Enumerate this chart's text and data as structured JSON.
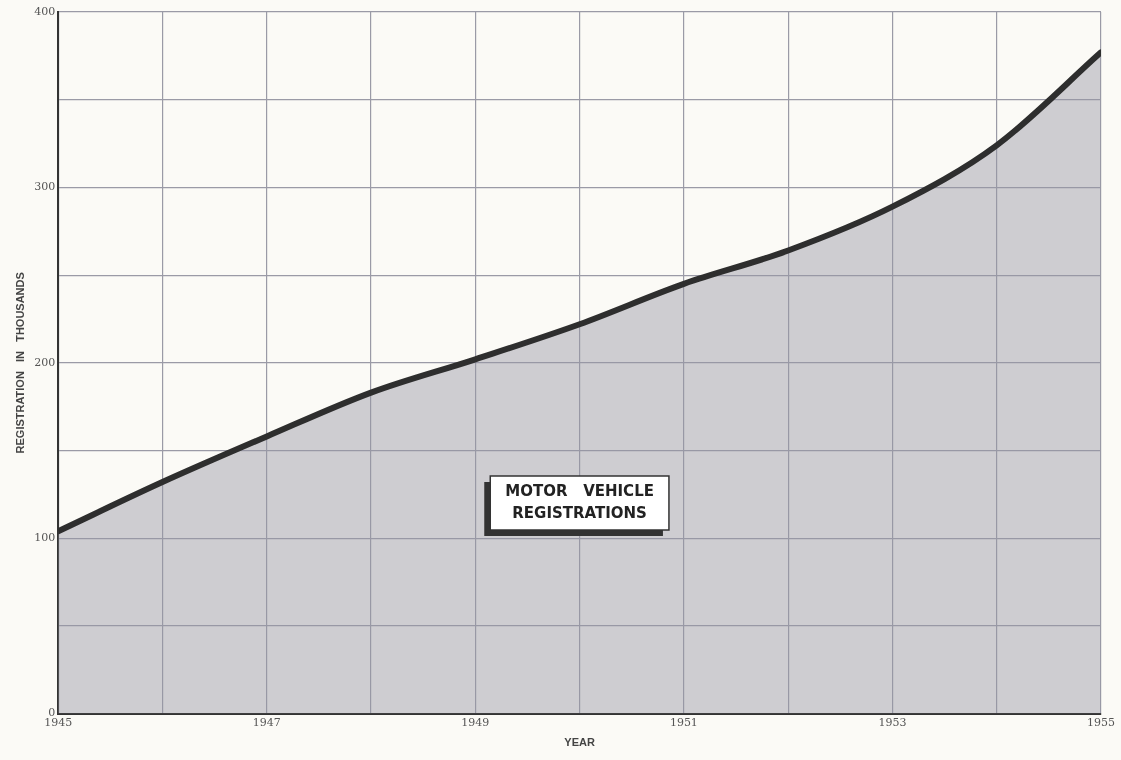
{
  "chart_data": {
    "type": "area",
    "xlabel": "YEAR",
    "ylabel": "REGISTRATION   IN   THOUSANDS",
    "x": [
      1945,
      1946,
      1947,
      1948,
      1949,
      1950,
      1951,
      1952,
      1953,
      1954,
      1955
    ],
    "series": [
      {
        "color": "#2e2e2e",
        "values": [
          104,
          132,
          158,
          183,
          202,
          222,
          245,
          264,
          289,
          324,
          377
        ]
      }
    ],
    "xlim": [
      1945,
      1955
    ],
    "xticks": [
      1945,
      {
        "value": 1946,
        "label": null
      },
      1947,
      {
        "value": 1948,
        "label": null
      },
      1949,
      {
        "value": 1950,
        "label": null
      },
      1951,
      {
        "value": 1952,
        "label": null
      },
      1953,
      {
        "value": 1954,
        "label": null
      },
      1955
    ],
    "ylim": [
      0,
      400
    ],
    "yticks": [
      0,
      {
        "value": 50,
        "label": null
      },
      100,
      {
        "value": 150,
        "label": null
      },
      200,
      {
        "value": 250,
        "label": null
      },
      300,
      {
        "value": 350,
        "label": null
      },
      400
    ],
    "grid": true,
    "legend": false,
    "marker": "none",
    "line_style": "solid",
    "annotations": [
      "MOTOR   VEHICLE\nREGISTRATIONS"
    ]
  }
}
